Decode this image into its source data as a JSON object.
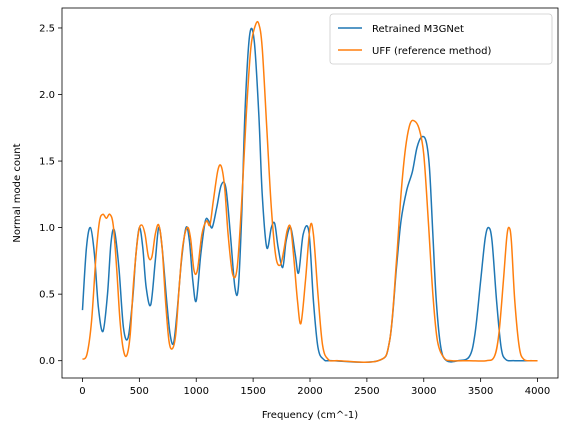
{
  "chart_data": {
    "type": "line",
    "xlabel": "Frequency (cm^-1)",
    "ylabel": "Normal mode count",
    "xlim": [
      -180,
      4180
    ],
    "ylim": [
      -0.13,
      2.65
    ],
    "xticks": [
      0,
      500,
      1000,
      1500,
      2000,
      2500,
      3000,
      3500,
      4000
    ],
    "yticks": [
      0.0,
      0.5,
      1.0,
      1.5,
      2.0,
      2.5
    ],
    "xtick_labels": [
      "0",
      "500",
      "1000",
      "1500",
      "2000",
      "2500",
      "3000",
      "3500",
      "4000"
    ],
    "ytick_labels": [
      "0.0",
      "0.5",
      "1.0",
      "1.5",
      "2.0",
      "2.5"
    ],
    "grid": false,
    "legend_position": "top-right",
    "series": [
      {
        "name": "Retrained M3GNet",
        "color": "#1f77b4",
        "x": [
          0,
          35,
          70,
          105,
          140,
          180,
          220,
          250,
          280,
          320,
          360,
          400,
          440,
          470,
          500,
          530,
          560,
          600,
          640,
          670,
          700,
          740,
          770,
          800,
          830,
          870,
          910,
          940,
          970,
          1000,
          1040,
          1080,
          1110,
          1140,
          1180,
          1220,
          1260,
          1300,
          1340,
          1370,
          1400,
          1430,
          1470,
          1510,
          1550,
          1580,
          1620,
          1660,
          1690,
          1720,
          1760,
          1790,
          1830,
          1870,
          1900,
          1940,
          1990,
          2030,
          2070,
          2120,
          2200,
          2600,
          2700,
          2760,
          2800,
          2850,
          2900,
          2940,
          2980,
          3020,
          3050,
          3080,
          3110,
          3150,
          3200,
          3300,
          3400,
          3450,
          3500,
          3540,
          3570,
          3600,
          3640,
          3680,
          3720,
          3800,
          4000
        ],
        "y": [
          0.38,
          0.85,
          1.0,
          0.8,
          0.4,
          0.22,
          0.5,
          0.88,
          0.98,
          0.7,
          0.25,
          0.17,
          0.45,
          0.8,
          1.0,
          0.85,
          0.55,
          0.42,
          0.75,
          1.0,
          0.85,
          0.45,
          0.2,
          0.13,
          0.35,
          0.75,
          1.0,
          0.9,
          0.6,
          0.45,
          0.8,
          1.05,
          1.05,
          1.0,
          1.15,
          1.32,
          1.3,
          0.95,
          0.55,
          0.55,
          1.1,
          1.9,
          2.45,
          2.4,
          1.85,
          1.25,
          0.85,
          1.0,
          1.03,
          0.85,
          0.7,
          0.9,
          1.0,
          0.8,
          0.66,
          0.95,
          0.97,
          0.45,
          0.1,
          0.01,
          0.0,
          0.0,
          0.15,
          0.7,
          1.05,
          1.28,
          1.42,
          1.6,
          1.68,
          1.65,
          1.45,
          0.95,
          0.45,
          0.1,
          0.0,
          0.0,
          0.03,
          0.2,
          0.6,
          0.92,
          1.0,
          0.9,
          0.45,
          0.1,
          0.01,
          0.0,
          0.0
        ]
      },
      {
        "name": "UFF (reference method)",
        "color": "#ff7f0e",
        "x": [
          0,
          40,
          80,
          120,
          150,
          180,
          210,
          240,
          270,
          300,
          330,
          360,
          390,
          420,
          450,
          490,
          520,
          550,
          580,
          610,
          640,
          670,
          700,
          730,
          760,
          790,
          820,
          850,
          880,
          920,
          950,
          980,
          1010,
          1050,
          1090,
          1120,
          1150,
          1190,
          1220,
          1250,
          1280,
          1320,
          1360,
          1400,
          1440,
          1480,
          1520,
          1550,
          1580,
          1620,
          1660,
          1700,
          1740,
          1770,
          1800,
          1830,
          1860,
          1890,
          1920,
          1960,
          2000,
          2030,
          2070,
          2110,
          2160,
          2250,
          2600,
          2700,
          2760,
          2800,
          2840,
          2880,
          2920,
          2960,
          3000,
          3040,
          3080,
          3120,
          3180,
          3250,
          3400,
          3550,
          3620,
          3660,
          3700,
          3730,
          3750,
          3770,
          3800,
          3840,
          3880,
          3950,
          4000
        ],
        "y": [
          0.01,
          0.05,
          0.3,
          0.8,
          1.05,
          1.1,
          1.07,
          1.1,
          1.02,
          0.7,
          0.3,
          0.08,
          0.04,
          0.2,
          0.6,
          0.95,
          1.02,
          0.95,
          0.78,
          0.78,
          0.95,
          1.02,
          0.85,
          0.45,
          0.15,
          0.09,
          0.2,
          0.55,
          0.85,
          1.0,
          0.92,
          0.68,
          0.68,
          0.95,
          1.05,
          1.02,
          1.2,
          1.43,
          1.46,
          1.3,
          0.95,
          0.65,
          0.7,
          1.2,
          1.85,
          2.35,
          2.52,
          2.53,
          2.35,
          1.75,
          1.15,
          0.78,
          0.72,
          0.83,
          0.98,
          1.0,
          0.75,
          0.45,
          0.28,
          0.6,
          1.0,
          0.95,
          0.5,
          0.12,
          0.01,
          0.0,
          0.0,
          0.15,
          0.75,
          1.25,
          1.6,
          1.78,
          1.8,
          1.74,
          1.55,
          1.05,
          0.5,
          0.15,
          0.02,
          0.0,
          0.0,
          0.0,
          0.03,
          0.2,
          0.6,
          0.93,
          1.0,
          0.9,
          0.45,
          0.1,
          0.01,
          0.0,
          0.0
        ]
      }
    ]
  }
}
